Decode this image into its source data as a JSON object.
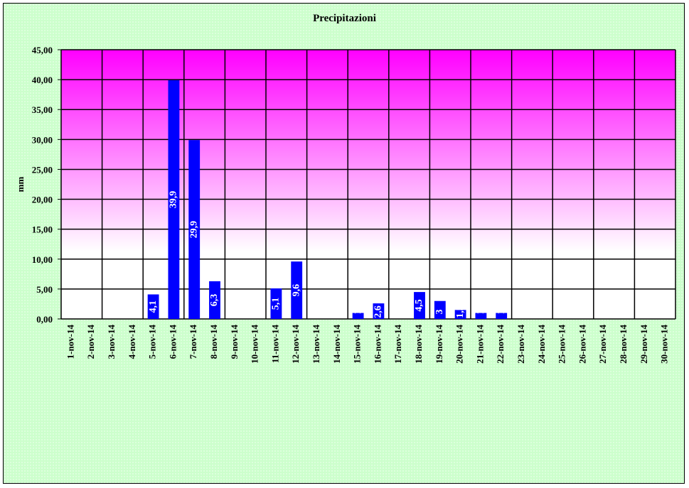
{
  "chart_data": {
    "type": "bar",
    "title": "Precipitazioni",
    "xlabel": "",
    "ylabel": "mm",
    "ylim": [
      0,
      45
    ],
    "y_tick_labels": [
      "0,00",
      "5,00",
      "10,00",
      "15,00",
      "20,00",
      "25,00",
      "30,00",
      "35,00",
      "40,00",
      "45,00"
    ],
    "categories": [
      "1-nov-14",
      "2-nov-14",
      "3-nov-14",
      "4-nov-14",
      "5-nov-14",
      "6-nov-14",
      "7-nov-14",
      "8-nov-14",
      "9-nov-14",
      "10-nov-14",
      "11-nov-14",
      "12-nov-14",
      "13-nov-14",
      "14-nov-14",
      "15-nov-14",
      "16-nov-14",
      "17-nov-14",
      "18-nov-14",
      "19-nov-14",
      "20-nov-14",
      "21-nov-14",
      "22-nov-14",
      "23-nov-14",
      "24-nov-14",
      "25-nov-14",
      "26-nov-14",
      "27-nov-14",
      "28-nov-14",
      "29-nov-14",
      "30-nov-14"
    ],
    "values": [
      0,
      0,
      0,
      0,
      4.1,
      39.9,
      29.9,
      6.3,
      0,
      0,
      5.1,
      9.6,
      0,
      0,
      1,
      2.6,
      0,
      4.5,
      3,
      1.5,
      1,
      1,
      0,
      0,
      0,
      0,
      0,
      0,
      0,
      0
    ],
    "data_labels": [
      "",
      "",
      "",
      "",
      "4,1",
      "39,9",
      "29,9",
      "6,3",
      "",
      "",
      "5,1",
      "9,6",
      "",
      "",
      "1",
      "2,6",
      "",
      "4,5",
      "3",
      "1,5",
      "1",
      "1",
      "",
      "",
      "",
      "",
      "",
      "",
      "",
      ""
    ],
    "grid": true,
    "legend": "none",
    "colors": {
      "bar": "#0000ff",
      "background": "#ccffcc",
      "plot_top": "#ff00ff",
      "plot_bottom": "#ffffff",
      "gridline": "#000000",
      "data_label": "#ffffff"
    }
  }
}
